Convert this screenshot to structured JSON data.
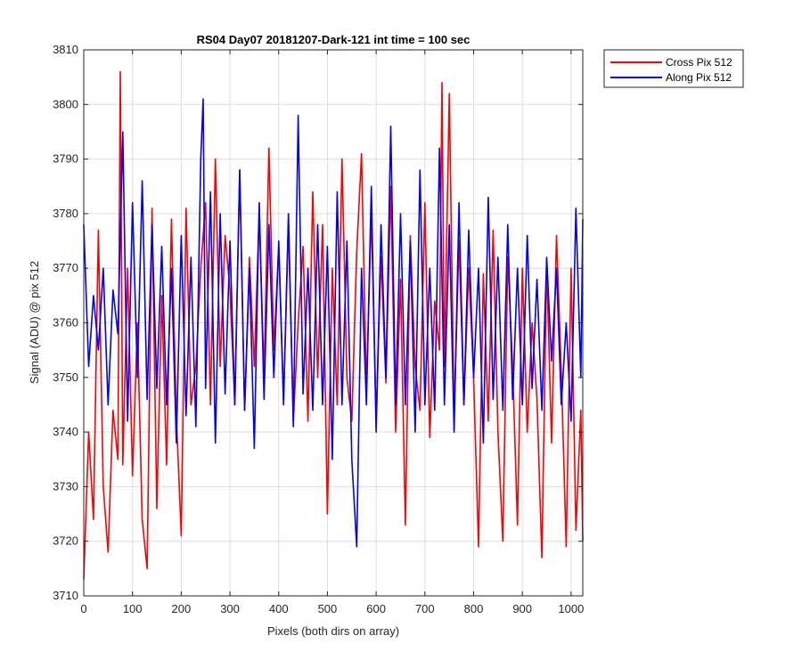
{
  "chart_data": {
    "type": "line",
    "title": "RS04 Day07 20181207-Dark-121 int time = 100 sec",
    "xlabel": "Pixels (both dirs on array)",
    "ylabel": "Signal (ADU) @ pix 512",
    "xlim": [
      0,
      1024
    ],
    "ylim": [
      3710,
      3810
    ],
    "xticks": [
      0,
      100,
      200,
      300,
      400,
      500,
      600,
      700,
      800,
      900,
      1000
    ],
    "yticks": [
      3710,
      3720,
      3730,
      3740,
      3750,
      3760,
      3770,
      3780,
      3790,
      3800,
      3810
    ],
    "grid": true,
    "legend_position": "outside-top-right",
    "series": [
      {
        "name": "Cross Pix 512",
        "color": "#ff0000",
        "x": [
          0,
          10,
          20,
          30,
          40,
          50,
          60,
          70,
          75,
          80,
          90,
          100,
          110,
          120,
          130,
          140,
          150,
          160,
          170,
          180,
          190,
          200,
          210,
          220,
          230,
          240,
          250,
          260,
          270,
          280,
          290,
          300,
          310,
          320,
          330,
          340,
          350,
          360,
          370,
          380,
          390,
          400,
          410,
          420,
          430,
          440,
          450,
          460,
          470,
          480,
          490,
          500,
          510,
          520,
          530,
          540,
          550,
          560,
          570,
          580,
          590,
          600,
          610,
          620,
          630,
          640,
          650,
          660,
          670,
          680,
          690,
          700,
          710,
          720,
          730,
          735,
          740,
          750,
          760,
          770,
          780,
          790,
          800,
          810,
          820,
          830,
          840,
          850,
          860,
          870,
          880,
          890,
          900,
          910,
          920,
          930,
          940,
          950,
          960,
          970,
          980,
          990,
          1000,
          1010,
          1020,
          1024
        ],
        "values": [
          3713,
          3740,
          3724,
          3777,
          3730,
          3718,
          3744,
          3735,
          3806,
          3734,
          3770,
          3732,
          3760,
          3724,
          3715,
          3781,
          3726,
          3765,
          3734,
          3779,
          3743,
          3721,
          3781,
          3745,
          3752,
          3770,
          3782,
          3745,
          3790,
          3752,
          3776,
          3766,
          3745,
          3788,
          3744,
          3772,
          3752,
          3781,
          3750,
          3792,
          3755,
          3774,
          3746,
          3778,
          3742,
          3760,
          3774,
          3742,
          3784,
          3750,
          3778,
          3725,
          3770,
          3745,
          3790,
          3750,
          3742,
          3773,
          3791,
          3748,
          3780,
          3742,
          3772,
          3749,
          3785,
          3740,
          3768,
          3723,
          3776,
          3752,
          3744,
          3782,
          3739,
          3764,
          3755,
          3804,
          3752,
          3802,
          3743,
          3775,
          3745,
          3770,
          3750,
          3719,
          3769,
          3742,
          3777,
          3740,
          3720,
          3772,
          3752,
          3723,
          3770,
          3740,
          3760,
          3746,
          3717,
          3771,
          3738,
          3776,
          3751,
          3719,
          3770,
          3722,
          3744,
          3720
        ]
      },
      {
        "name": "Along Pix 512",
        "color": "#0000ff",
        "x": [
          0,
          10,
          20,
          30,
          40,
          50,
          60,
          70,
          80,
          90,
          100,
          110,
          120,
          130,
          140,
          150,
          160,
          170,
          180,
          190,
          200,
          210,
          220,
          230,
          240,
          245,
          250,
          260,
          270,
          280,
          290,
          300,
          310,
          320,
          330,
          340,
          350,
          360,
          370,
          380,
          390,
          400,
          410,
          420,
          430,
          440,
          450,
          460,
          470,
          480,
          490,
          500,
          510,
          520,
          530,
          540,
          550,
          560,
          570,
          580,
          590,
          600,
          610,
          620,
          630,
          640,
          650,
          660,
          670,
          680,
          690,
          700,
          710,
          720,
          730,
          740,
          750,
          760,
          770,
          780,
          790,
          800,
          810,
          820,
          830,
          840,
          850,
          860,
          870,
          880,
          890,
          900,
          910,
          920,
          930,
          940,
          950,
          960,
          970,
          980,
          990,
          1000,
          1010,
          1020,
          1024
        ],
        "values": [
          3778,
          3752,
          3765,
          3755,
          3770,
          3745,
          3766,
          3758,
          3795,
          3742,
          3782,
          3750,
          3786,
          3746,
          3778,
          3748,
          3774,
          3745,
          3770,
          3738,
          3776,
          3743,
          3772,
          3741,
          3790,
          3801,
          3748,
          3784,
          3738,
          3780,
          3747,
          3775,
          3745,
          3788,
          3744,
          3770,
          3737,
          3782,
          3746,
          3778,
          3750,
          3775,
          3745,
          3780,
          3741,
          3798,
          3747,
          3770,
          3744,
          3778,
          3745,
          3774,
          3735,
          3784,
          3745,
          3775,
          3735,
          3719,
          3770,
          3745,
          3785,
          3740,
          3778,
          3750,
          3796,
          3745,
          3780,
          3745,
          3775,
          3740,
          3788,
          3745,
          3770,
          3744,
          3792,
          3745,
          3778,
          3740,
          3782,
          3745,
          3777,
          3750,
          3770,
          3738,
          3783,
          3746,
          3772,
          3744,
          3778,
          3746,
          3770,
          3745,
          3776,
          3748,
          3768,
          3744,
          3772,
          3753,
          3770,
          3745,
          3760,
          3742,
          3781,
          3750,
          3779
        ]
      }
    ]
  }
}
